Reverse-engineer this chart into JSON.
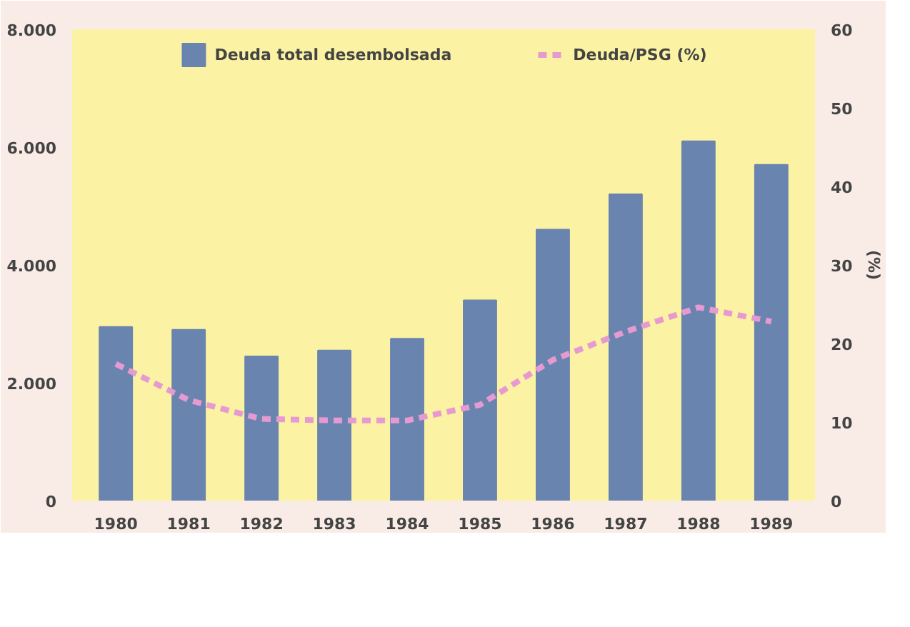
{
  "chart_data": {
    "type": "bar",
    "y2label": "(%)",
    "categories": [
      "1980",
      "1981",
      "1982",
      "1983",
      "1984",
      "1985",
      "1986",
      "1987",
      "1988",
      "1989"
    ],
    "series": [
      {
        "name": "Deuda total desembolsada",
        "color": "#6a84b0",
        "values": [
          2950,
          2900,
          2450,
          2550,
          2750,
          3400,
          4600,
          5200,
          6100,
          5700
        ]
      },
      {
        "name": "Deuda/PSG (%)",
        "type": "line",
        "axis": "y2",
        "color": "#e79ad0",
        "line_style": "dashed",
        "values": [
          17.4,
          12.8,
          10.4,
          10.2,
          10.2,
          12.2,
          17.9,
          21.5,
          24.6,
          22.8
        ]
      }
    ],
    "ylim": [
      0,
      8000
    ],
    "yticks": [
      {
        "value": 0,
        "label": "0"
      },
      {
        "value": 2000,
        "label": "2.000"
      },
      {
        "value": 4000,
        "label": "4.000"
      },
      {
        "value": 6000,
        "label": "6.000"
      },
      {
        "value": 8000,
        "label": "8.000"
      }
    ],
    "y2lim": [
      0,
      60
    ],
    "y2ticks": [
      0,
      10,
      20,
      30,
      40,
      50,
      60
    ],
    "grid": false,
    "legend": "top"
  }
}
